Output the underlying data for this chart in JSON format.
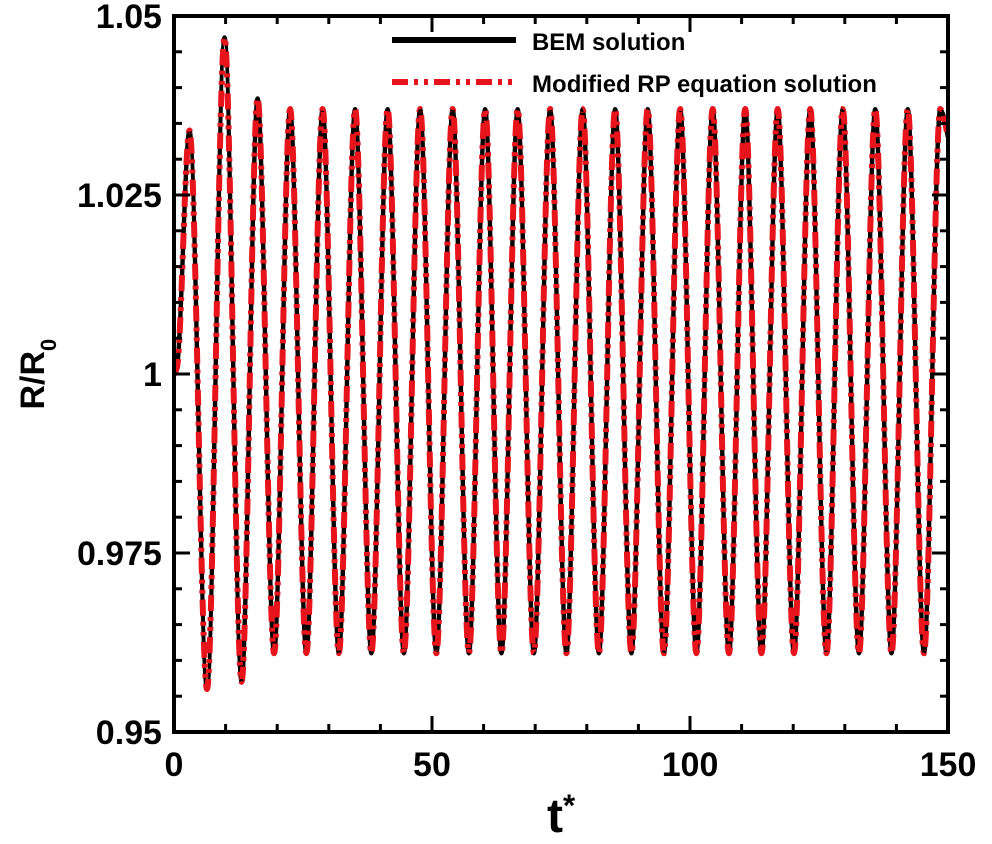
{
  "chart_data": {
    "type": "line",
    "xlabel": "t$^{*}$",
    "ylabel": "R/R$_{0}$",
    "x": [
      0,
      0.6,
      3.0,
      6.4,
      9.8,
      13.1,
      16.2,
      19.4,
      22.5,
      25.65,
      28.8,
      31.95,
      35.1,
      38.25,
      41.4,
      44.55,
      47.7,
      50.85,
      54.0,
      57.15,
      60.3,
      63.45,
      66.6,
      69.75,
      72.9,
      76.05,
      79.2,
      82.35,
      85.5,
      88.65,
      91.8,
      94.95,
      98.1,
      101.25,
      104.4,
      107.55,
      110.7,
      113.85,
      117.0,
      120.15,
      123.3,
      126.45,
      129.6,
      132.75,
      135.9,
      139.05,
      142.2,
      145.35,
      148.5,
      150
    ],
    "series": [
      {
        "name": "BEM solution",
        "color": "#000000",
        "line_style": "solid",
        "values": [
          1.0,
          1.001,
          1.034,
          0.956,
          1.047,
          0.957,
          1.0385,
          0.961,
          1.037,
          0.961,
          1.037,
          0.961,
          1.037,
          0.961,
          1.037,
          0.961,
          1.037,
          0.961,
          1.037,
          0.961,
          1.037,
          0.961,
          1.037,
          0.961,
          1.037,
          0.961,
          1.037,
          0.961,
          1.037,
          0.961,
          1.037,
          0.961,
          1.037,
          0.961,
          1.037,
          0.961,
          1.037,
          0.961,
          1.037,
          0.961,
          1.037,
          0.961,
          1.037,
          0.961,
          1.037,
          0.961,
          1.037,
          0.961,
          1.037,
          1.033
        ]
      },
      {
        "name": "Modified RP equation solution",
        "color": "#e8141c",
        "line_style": "dashed",
        "values": [
          1.0,
          1.001,
          1.034,
          0.956,
          1.047,
          0.957,
          1.0385,
          0.961,
          1.037,
          0.961,
          1.037,
          0.961,
          1.037,
          0.961,
          1.037,
          0.961,
          1.037,
          0.961,
          1.037,
          0.961,
          1.037,
          0.961,
          1.037,
          0.961,
          1.037,
          0.961,
          1.037,
          0.961,
          1.037,
          0.961,
          1.037,
          0.961,
          1.037,
          0.961,
          1.037,
          0.961,
          1.037,
          0.961,
          1.037,
          0.961,
          1.037,
          0.961,
          1.037,
          0.961,
          1.037,
          0.961,
          1.037,
          0.961,
          1.037,
          1.033
        ]
      }
    ],
    "xlim": [
      0,
      150
    ],
    "xticks": [
      0,
      {
        "value": 10,
        "label": null
      },
      {
        "value": 20,
        "label": null
      },
      {
        "value": 30,
        "label": null
      },
      {
        "value": 40,
        "label": null
      },
      50,
      {
        "value": 60,
        "label": null
      },
      {
        "value": 70,
        "label": null
      },
      {
        "value": 80,
        "label": null
      },
      {
        "value": 90,
        "label": null
      },
      100,
      {
        "value": 110,
        "label": null
      },
      {
        "value": 120,
        "label": null
      },
      {
        "value": 130,
        "label": null
      },
      {
        "value": 140,
        "label": null
      },
      150
    ],
    "ylim": [
      0.95,
      1.05
    ],
    "yticks": [
      0.95,
      {
        "value": 0.955,
        "label": null
      },
      {
        "value": 0.96,
        "label": null
      },
      {
        "value": 0.965,
        "label": null
      },
      {
        "value": 0.97,
        "label": null
      },
      0.975,
      {
        "value": 0.98,
        "label": null
      },
      {
        "value": 0.985,
        "label": null
      },
      {
        "value": 0.99,
        "label": null
      },
      {
        "value": 0.995,
        "label": null
      },
      1,
      {
        "value": 1.005,
        "label": null
      },
      {
        "value": 1.01,
        "label": null
      },
      {
        "value": 1.015,
        "label": null
      },
      {
        "value": 1.02,
        "label": null
      },
      1.025,
      {
        "value": 1.03,
        "label": null
      },
      {
        "value": 1.035,
        "label": null
      },
      {
        "value": 1.04,
        "label": null
      },
      {
        "value": 1.045,
        "label": null
      },
      1.05
    ],
    "grid": false,
    "legend": "top right",
    "marker": "none"
  }
}
